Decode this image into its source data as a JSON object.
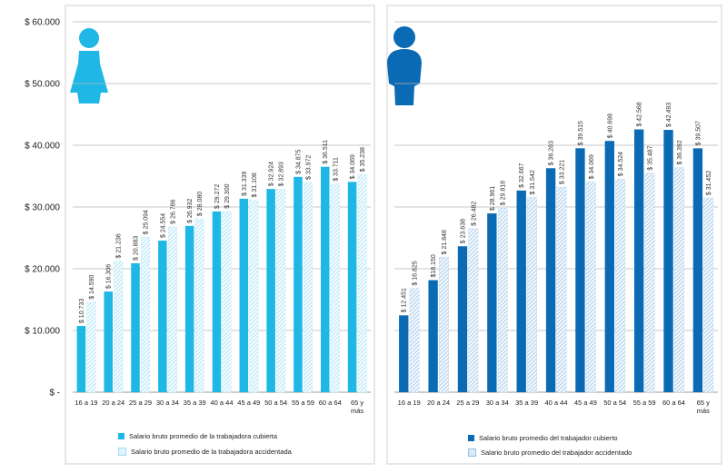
{
  "chart_data": [
    {
      "type": "bar",
      "panel": "female",
      "icon": "woman-icon",
      "categories": [
        "16 a 19",
        "20 a 24",
        "25 a 29",
        "30 a 34",
        "35 a 39",
        "40 a 44",
        "45 a 49",
        "50 a 54",
        "55 a 59",
        "60 a 64",
        "65 y más"
      ],
      "y_tick_labels": [
        "$ -",
        "$ 10.000",
        "$ 20.000",
        "$ 30.000",
        "$ 40.000",
        "$ 50.000",
        "$ 60.000"
      ],
      "ylim": [
        0,
        60000
      ],
      "grid": true,
      "series": [
        {
          "name": "Salario bruto promedio de la trabajadora cubierta",
          "color": "#1fb7e6",
          "pattern": "solid",
          "values": [
            10733,
            16306,
            20883,
            24554,
            26932,
            29272,
            31339,
            32924,
            34875,
            36511,
            34069
          ],
          "value_labels": [
            "$ 10.733",
            "$ 16.306",
            "$ 20.883",
            "$ 24.554",
            "$ 26.932",
            "$ 29.272",
            "$ 31.339",
            "$ 32.924",
            "$ 34.875",
            "$ 36.511",
            "$ 34.069"
          ]
        },
        {
          "name": "Salario bruto promedio de la trabajadora accidentada",
          "color": "#bfe9f8",
          "pattern": "hatched",
          "values": [
            14590,
            21236,
            25094,
            26786,
            28080,
            29300,
            31108,
            32893,
            33972,
            33711,
            35238
          ],
          "value_labels": [
            "$ 14.590",
            "$ 21.236",
            "$ 25.094",
            "$ 26.786",
            "$ 28.080",
            "$ 29.300",
            "$ 31.108",
            "$ 32.893",
            "$ 33.972",
            "$ 33.711",
            "$ 35.238"
          ]
        }
      ]
    },
    {
      "type": "bar",
      "panel": "male",
      "icon": "man-icon",
      "categories": [
        "16 a 19",
        "20 a 24",
        "25 a 29",
        "30 a 34",
        "35 a 39",
        "40 a 44",
        "45 a 49",
        "50 a 54",
        "55 a 59",
        "60 a 64",
        "65 y más"
      ],
      "y_tick_labels": [],
      "ylim": [
        0,
        60000
      ],
      "grid": true,
      "series": [
        {
          "name": "Salario bruto promedio del trabajador cubierto",
          "color": "#0a6ab4",
          "pattern": "solid",
          "values": [
            12451,
            18150,
            23638,
            28961,
            32667,
            36283,
            39515,
            40698,
            42568,
            42493,
            39507
          ],
          "value_labels": [
            "$ 12.451",
            "$18.150",
            "$ 23.638",
            "$ 28.961",
            "$ 32.667",
            "$ 36.283",
            "$ 39.515",
            "$ 40.698",
            "$ 42.568",
            "$ 42.493",
            "$ 39.507"
          ]
        },
        {
          "name": "Salario bruto promedio del trabajador accidentado",
          "color": "#b6d5ef",
          "pattern": "hatched",
          "values": [
            16825,
            21848,
            26482,
            29818,
            31542,
            33221,
            34069,
            34524,
            35487,
            36392,
            31452
          ],
          "value_labels": [
            "$ 16.825",
            "$ 21.848",
            "$ 26.482",
            "$ 29.818",
            "$ 31.542",
            "$ 33.221",
            "$ 34.069",
            "$ 34.524",
            "$ 35.487",
            "$ 36.392",
            "$ 31.452"
          ]
        }
      ]
    }
  ]
}
